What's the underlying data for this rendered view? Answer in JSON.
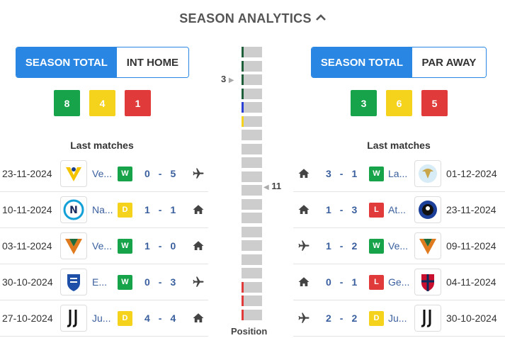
{
  "title": "SEASON ANALYTICS",
  "left": {
    "tabs": [
      {
        "label": "SEASON TOTAL",
        "active": true
      },
      {
        "label": "INT HOME",
        "active": false
      }
    ],
    "wdl": {
      "w": "8",
      "d": "4",
      "l": "1"
    },
    "last_matches_title": "Last matches",
    "matches": [
      {
        "date": "23-11-2024",
        "team": "Ve...",
        "result": "W",
        "home": "0",
        "away": "5",
        "venue": "plane-icon",
        "crest": "verona"
      },
      {
        "date": "10-11-2024",
        "team": "Na...",
        "result": "D",
        "home": "1",
        "away": "1",
        "venue": "home-icon",
        "crest": "napoli"
      },
      {
        "date": "03-11-2024",
        "team": "Ve...",
        "result": "W",
        "home": "1",
        "away": "0",
        "venue": "home-icon",
        "crest": "venezia"
      },
      {
        "date": "30-10-2024",
        "team": "E...",
        "result": "W",
        "home": "0",
        "away": "3",
        "venue": "plane-icon",
        "crest": "empoli"
      },
      {
        "date": "27-10-2024",
        "team": "Ju...",
        "result": "D",
        "home": "4",
        "away": "4",
        "venue": "home-icon",
        "crest": "juventus"
      }
    ]
  },
  "right": {
    "tabs": [
      {
        "label": "SEASON TOTAL",
        "active": true
      },
      {
        "label": "PAR AWAY",
        "active": false
      }
    ],
    "wdl": {
      "w": "3",
      "d": "6",
      "l": "5"
    },
    "last_matches_title": "Last matches",
    "matches": [
      {
        "date": "01-12-2024",
        "team": "La...",
        "result": "W",
        "home": "3",
        "away": "1",
        "venue": "home-icon",
        "crest": "lazio"
      },
      {
        "date": "23-11-2024",
        "team": "At...",
        "result": "L",
        "home": "1",
        "away": "3",
        "venue": "home-icon",
        "crest": "atalanta"
      },
      {
        "date": "09-11-2024",
        "team": "Ve...",
        "result": "W",
        "home": "1",
        "away": "2",
        "venue": "plane-icon",
        "crest": "venezia"
      },
      {
        "date": "04-11-2024",
        "team": "Ge...",
        "result": "L",
        "home": "0",
        "away": "1",
        "venue": "home-icon",
        "crest": "genoa"
      },
      {
        "date": "30-10-2024",
        "team": "Ju...",
        "result": "D",
        "home": "2",
        "away": "2",
        "venue": "plane-icon",
        "crest": "juventus"
      }
    ]
  },
  "standings": {
    "count": 20,
    "left_position": "3",
    "right_position": "11",
    "left_rank": 3,
    "right_rank": 11,
    "marks": {
      "1": "#1f5f3a",
      "2": "#1f5f3a",
      "3": "#1f5f3a",
      "4": "#1f5f3a",
      "5": "#2a3fd6",
      "6": "#f5d21b",
      "18": "#e03a3a",
      "19": "#e03a3a",
      "20": "#e03a3a"
    },
    "label": "Position"
  },
  "colors": {
    "accent": "#2a86e3",
    "win": "#17a349",
    "draw": "#f5d21b",
    "loss": "#e03a3a",
    "team_text": "#3a5f9e"
  }
}
